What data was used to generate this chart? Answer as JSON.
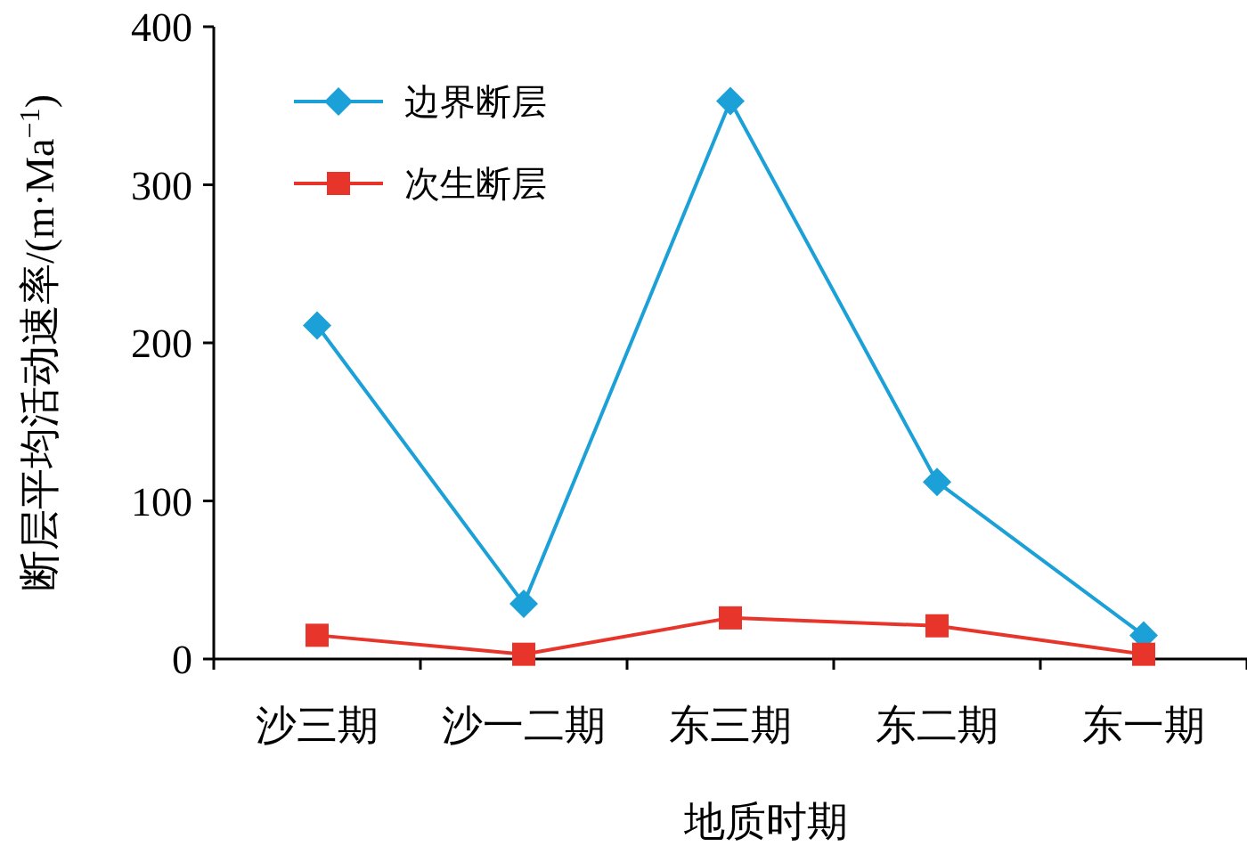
{
  "chart_data": {
    "type": "line",
    "xlabel": "地质时期",
    "ylabel": "断层平均活动速率/(m·Ma$^{−1}$)",
    "categories": [
      "沙三期",
      "沙一二期",
      "东三期",
      "东二期",
      "东一期"
    ],
    "series": [
      {
        "name": "边界断层",
        "color": "#1ba1d8",
        "marker": "diamond",
        "values": [
          211,
          35,
          353,
          112,
          15
        ]
      },
      {
        "name": "次生断层",
        "color": "#e8352b",
        "marker": "square",
        "values": [
          15,
          3,
          26,
          21,
          3
        ]
      }
    ],
    "ylim": [
      0,
      400
    ],
    "yticks": [
      0,
      100,
      200,
      300,
      400
    ],
    "legend": "top left"
  }
}
